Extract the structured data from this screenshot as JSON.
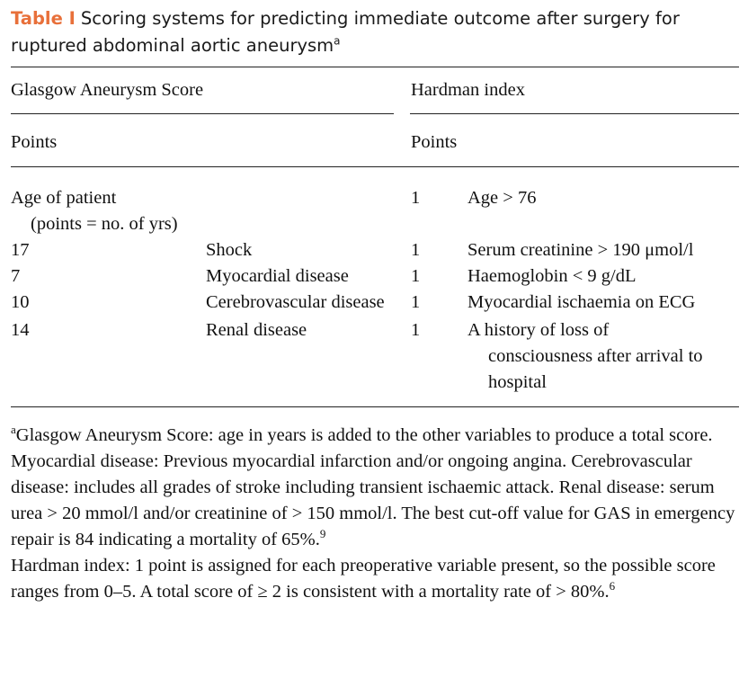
{
  "caption": {
    "label": "Table I",
    "line1": "Scoring systems for predicting immediate outcome after surgery for",
    "line2": "ruptured abdominal aortic aneurysm",
    "sup": "a"
  },
  "header": {
    "gas_title": "Glasgow Aneurysm Score",
    "hardman_title": "Hardman index",
    "gas_points": "Points",
    "hardman_points": "Points"
  },
  "rows": {
    "age_label": "Age of patient",
    "age_note": "(points = no. of yrs)",
    "hardman_age_points": "1",
    "hardman_age_label": "Age > 76",
    "gas": [
      {
        "points": "17",
        "label": "Shock"
      },
      {
        "points": "7",
        "label": "Myocardial disease"
      },
      {
        "points": "10",
        "label": "Cerebrovascular disease"
      },
      {
        "points": "14",
        "label": "Renal disease"
      }
    ],
    "hardman": [
      {
        "points": "1",
        "label": "Serum creatinine > 190 μmol/l"
      },
      {
        "points": "1",
        "label": "Haemoglobin < 9 g/dL"
      },
      {
        "points": "1",
        "label": "Myocardial ischaemia on ECG"
      },
      {
        "points": "1",
        "label": "A history of loss of",
        "cont1": "consciousness after arrival to",
        "cont2": "hospital"
      }
    ]
  },
  "footnote": {
    "sup_a": "a",
    "gas_note": "Glasgow Aneurysm Score: age in years is added to the other variables to produce a total score. Myocardial disease: Previous myocardial infarction and/or ongoing angina. Cerebrovascular disease: includes all grades of stroke including transient ischaemic attack. Renal disease: serum urea > 20 mmol/l and/or creatinine of > 150 mmol/l. The best cut-off value for GAS in emergency repair is 84 indicating a mortality of 65%.",
    "ref1": "9",
    "hardman_note": "Hardman index: 1 point is assigned for each preoperative variable present, so the possible score ranges from 0–5. A total score of ≥ 2 is consistent with a mortality rate of > 80%.",
    "ref2": "6"
  }
}
